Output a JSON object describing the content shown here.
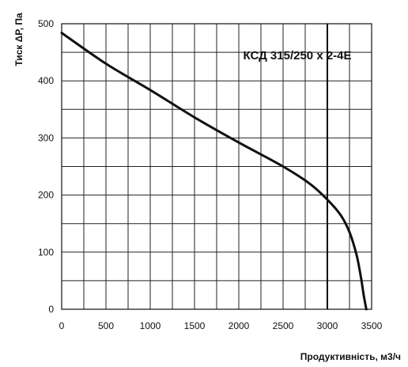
{
  "chart_data": {
    "type": "line",
    "title": "",
    "xlabel": "Продуктивність, м3/ч",
    "ylabel": "Тиск ΔP, Па",
    "xlim": [
      0,
      3500
    ],
    "ylim": [
      0,
      500
    ],
    "x_ticks": [
      "0",
      "500",
      "1000",
      "1500",
      "2000",
      "2500",
      "3000",
      "3500"
    ],
    "y_ticks": [
      "0",
      "100",
      "200",
      "300",
      "400",
      "500"
    ],
    "grid": true,
    "annotations": [
      {
        "text": "КСД 315/250 x 2-4E",
        "marker_x": 3000
      }
    ],
    "series": [
      {
        "x": [
          0,
          500,
          1000,
          1500,
          2000,
          2500,
          2800,
          3000,
          3150,
          3250,
          3330,
          3380,
          3410,
          3430,
          3440
        ],
        "y": [
          484,
          430,
          384,
          336,
          292,
          250,
          220,
          192,
          165,
          135,
          95,
          55,
          25,
          8,
          0
        ]
      }
    ]
  }
}
